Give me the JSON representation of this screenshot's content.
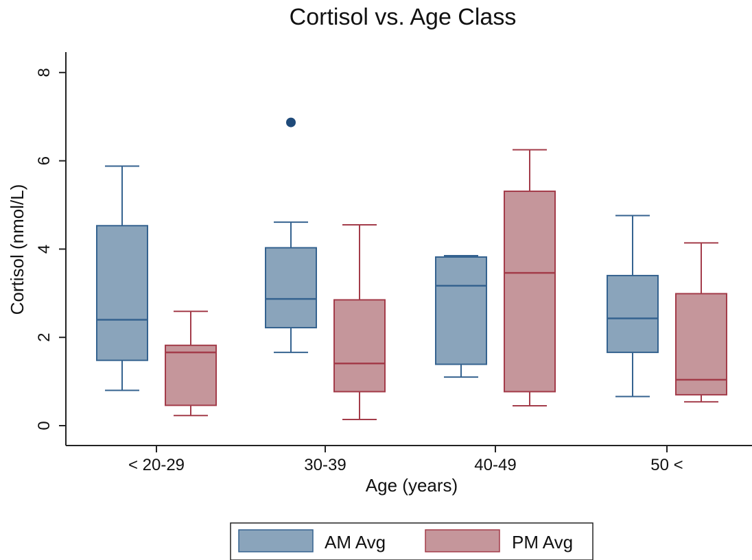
{
  "chart_data": {
    "type": "boxplot",
    "title": "Cortisol vs. Age Class",
    "xlabel": "Age (years)",
    "ylabel": "Cortisol (nmol/L)",
    "ylim": [
      0,
      8
    ],
    "yticks": [
      "0",
      "2",
      "4",
      "6",
      "8"
    ],
    "categories": [
      "< 20-29",
      "30-39",
      "40-49",
      "50 <"
    ],
    "grid": false,
    "legend_position": "bottom",
    "series": [
      {
        "name": "AM Avg",
        "color": "#8aa4bb",
        "stroke": "#34628f",
        "boxes": [
          {
            "min": 0.8,
            "q1": 1.48,
            "median": 2.4,
            "q3": 4.53,
            "max": 5.88,
            "outliers": []
          },
          {
            "min": 1.66,
            "q1": 2.22,
            "median": 2.87,
            "q3": 4.03,
            "max": 4.61,
            "outliers": [
              6.87
            ]
          },
          {
            "min": 1.1,
            "q1": 1.39,
            "median": 3.17,
            "q3": 3.82,
            "max": 3.85,
            "outliers": []
          },
          {
            "min": 0.66,
            "q1": 1.66,
            "median": 2.43,
            "q3": 3.4,
            "max": 4.76,
            "outliers": []
          }
        ]
      },
      {
        "name": "PM Avg",
        "color": "#c5969b",
        "stroke": "#a33b49",
        "boxes": [
          {
            "min": 0.23,
            "q1": 0.46,
            "median": 1.66,
            "q3": 1.82,
            "max": 2.59,
            "outliers": []
          },
          {
            "min": 0.14,
            "q1": 0.77,
            "median": 1.41,
            "q3": 2.85,
            "max": 4.55,
            "outliers": []
          },
          {
            "min": 0.45,
            "q1": 0.77,
            "median": 3.46,
            "q3": 5.31,
            "max": 6.25,
            "outliers": []
          },
          {
            "min": 0.54,
            "q1": 0.7,
            "median": 1.04,
            "q3": 2.99,
            "max": 4.14,
            "outliers": []
          }
        ]
      }
    ],
    "outlier_color": "#1f4a7a"
  }
}
